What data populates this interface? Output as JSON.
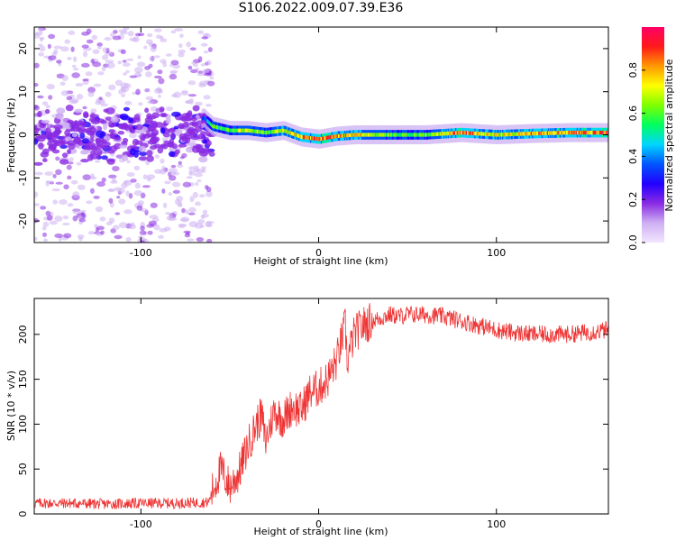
{
  "title": "S106.2022.009.07.39.E36",
  "chart_data": [
    {
      "type": "heatmap",
      "xlabel": "Height of straight line (km)",
      "ylabel": "Frequency (Hz)",
      "xlim": [
        -160,
        163
      ],
      "ylim": [
        -25,
        25
      ],
      "xticks": [
        -100,
        0,
        100
      ],
      "yticks": [
        -20,
        -10,
        0,
        10,
        20
      ],
      "colorbar": {
        "label": "Normalized spectral amplitude",
        "range": [
          0.0,
          1.0
        ],
        "ticks": [
          "0.0",
          "0.2",
          "0.4",
          "0.6",
          "0.8"
        ],
        "colormap": [
          "#f3e6ff",
          "#ceb0f3",
          "#8a2be2",
          "#2200ff",
          "#0055ff",
          "#00d4ff",
          "#00ff60",
          "#7dff00",
          "#ffff00",
          "#ff9900",
          "#ff1a1a",
          "#ff0066"
        ]
      },
      "ridge": {
        "x": [
          -160,
          -140,
          -120,
          -100,
          -80,
          -65,
          -60,
          -50,
          -40,
          -30,
          -20,
          -10,
          0,
          10,
          20,
          40,
          60,
          80,
          100,
          120,
          140,
          163
        ],
        "frequency": [
          0.5,
          0,
          -1,
          0.5,
          0,
          4,
          2,
          1,
          1,
          0.5,
          1,
          -0.5,
          -1,
          -0.3,
          0,
          0,
          0,
          0.5,
          0,
          0.3,
          0.5,
          0.5
        ],
        "amplitude": [
          0.2,
          0.2,
          0.2,
          0.2,
          0.2,
          0.35,
          0.55,
          0.6,
          0.7,
          0.6,
          0.7,
          0.75,
          0.85,
          0.8,
          0.75,
          0.6,
          0.6,
          0.85,
          0.7,
          0.8,
          0.8,
          0.9
        ],
        "scatter_before_x": -60
      }
    },
    {
      "type": "line",
      "xlabel": "Height of straight line (km)",
      "ylabel": "SNR (10 * v/v)",
      "xlim": [
        -160,
        163
      ],
      "ylim": [
        0,
        240
      ],
      "xticks": [
        -100,
        0,
        100
      ],
      "yticks": [
        0,
        50,
        100,
        150,
        200
      ],
      "color": "#ee3333",
      "series": [
        {
          "x": [
            -160,
            -140,
            -120,
            -100,
            -80,
            -62,
            -58,
            -55,
            -50,
            -45,
            -40,
            -35,
            -32,
            -30,
            -25,
            -20,
            -15,
            -10,
            -5,
            0,
            5,
            10,
            15,
            16,
            18,
            20,
            25,
            30,
            35,
            40,
            45,
            50,
            60,
            70,
            80,
            90,
            100,
            110,
            120,
            130,
            140,
            150,
            163
          ],
          "y": [
            12,
            12,
            11,
            12,
            12,
            13,
            35,
            50,
            30,
            45,
            75,
            100,
            110,
            80,
            115,
            105,
            120,
            115,
            135,
            140,
            150,
            170,
            210,
            170,
            185,
            200,
            210,
            215,
            218,
            222,
            220,
            222,
            222,
            220,
            215,
            210,
            205,
            202,
            200,
            200,
            200,
            202,
            205
          ]
        }
      ]
    }
  ]
}
